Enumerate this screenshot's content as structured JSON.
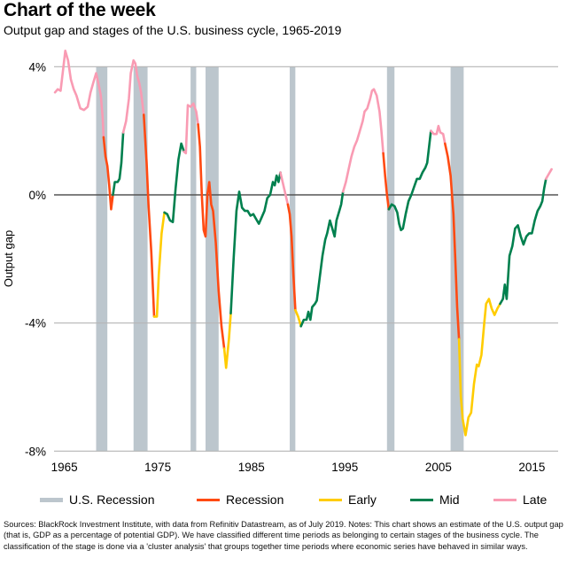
{
  "header": {
    "title": "Chart of the week",
    "subtitle": "Output gap and stages of the U.S. business cycle, 1965-2019"
  },
  "colors": {
    "recession_band": "#bcc6cd",
    "recession": "#ff4a12",
    "early": "#ffcc00",
    "mid": "#00804e",
    "late": "#f99bb3",
    "zero_line": "#555555",
    "grid": "#b5b5b5"
  },
  "legend": [
    {
      "key": "us_recession",
      "label": "U.S. Recession",
      "type": "band"
    },
    {
      "key": "recession",
      "label": "Recession",
      "type": "line"
    },
    {
      "key": "early",
      "label": "Early",
      "type": "line"
    },
    {
      "key": "mid",
      "label": "Mid",
      "type": "line"
    },
    {
      "key": "late",
      "label": "Late",
      "type": "line"
    }
  ],
  "footnote": "Sources: BlackRock Investment Institute, with data from Refinitiv Datastream, as of July 2019. Notes: This chart shows an estimate of the U.S. output gap (that is, GDP as a percentage of potential GDP). We have classified different time periods as belonging to certain stages of the business cycle. The classification of the stage is done via a 'cluster analysis' that groups together time periods where economic series have behaved in similar ways.",
  "chart_data": {
    "type": "line",
    "title": "Output gap and stages of the U.S. business cycle, 1965-2019",
    "xlabel": "",
    "ylabel": "Output gap",
    "xlim": [
      1963.9,
      2017.8
    ],
    "ylim": [
      -8,
      4.5
    ],
    "x_ticks": [
      1965,
      1975,
      1985,
      1995,
      2005,
      2015
    ],
    "x_tick_labels": [
      "1965",
      "1975",
      "1985",
      "1995",
      "2005",
      "2015"
    ],
    "y_ticks": [
      4,
      0,
      -4,
      -8
    ],
    "y_tick_labels": [
      "4%",
      "0%",
      "-4%",
      "-8%"
    ],
    "grid": "horizontal",
    "legend_position": "bottom",
    "recession_periods": [
      [
        1968.4,
        1969.6
      ],
      [
        1972.4,
        1973.9
      ],
      [
        1978.5,
        1979.1
      ],
      [
        1980.1,
        1981.5
      ],
      [
        1989.1,
        1989.7
      ],
      [
        1999.5,
        2000.3
      ],
      [
        2006.3,
        2007.7
      ]
    ],
    "series": [
      {
        "name": "Late",
        "stage": "late",
        "points": [
          [
            1964.0,
            3.2
          ],
          [
            1964.3,
            3.3
          ],
          [
            1964.6,
            3.25
          ],
          [
            1964.9,
            4.0
          ],
          [
            1965.1,
            4.5
          ],
          [
            1965.4,
            4.2
          ],
          [
            1965.7,
            3.6
          ],
          [
            1966.0,
            3.3
          ],
          [
            1966.3,
            3.1
          ],
          [
            1966.7,
            2.7
          ],
          [
            1967.1,
            2.65
          ],
          [
            1967.5,
            2.75
          ],
          [
            1967.8,
            3.2
          ],
          [
            1968.1,
            3.5
          ],
          [
            1968.4,
            3.8
          ],
          [
            1968.7,
            3.4
          ],
          [
            1968.9,
            3.1
          ],
          [
            1969.1,
            2.4
          ],
          [
            1969.2,
            1.8
          ]
        ]
      },
      {
        "name": "Recession",
        "stage": "recession",
        "points": [
          [
            1969.2,
            1.8
          ],
          [
            1969.4,
            1.2
          ],
          [
            1969.6,
            0.9
          ],
          [
            1969.8,
            0.3
          ],
          [
            1970.0,
            -0.45
          ],
          [
            1970.2,
            0.0
          ]
        ]
      },
      {
        "name": "Mid",
        "stage": "mid",
        "points": [
          [
            1970.2,
            0.0
          ],
          [
            1970.4,
            0.4
          ],
          [
            1970.7,
            0.4
          ],
          [
            1970.9,
            0.5
          ],
          [
            1971.1,
            1.0
          ],
          [
            1971.3,
            1.95
          ]
        ]
      },
      {
        "name": "Late",
        "stage": "late",
        "points": [
          [
            1971.3,
            1.95
          ],
          [
            1971.6,
            2.3
          ],
          [
            1971.9,
            3.0
          ],
          [
            1972.1,
            3.8
          ],
          [
            1972.4,
            4.2
          ],
          [
            1972.6,
            4.1
          ],
          [
            1972.8,
            3.7
          ],
          [
            1973.0,
            3.5
          ],
          [
            1973.2,
            3.2
          ],
          [
            1973.5,
            2.5
          ]
        ]
      },
      {
        "name": "Recession",
        "stage": "recession",
        "points": [
          [
            1973.5,
            2.5
          ],
          [
            1973.8,
            1.0
          ],
          [
            1974.0,
            -0.3
          ],
          [
            1974.3,
            -1.8
          ],
          [
            1974.6,
            -3.8
          ]
        ]
      },
      {
        "name": "Early",
        "stage": "early",
        "points": [
          [
            1974.6,
            -3.8
          ],
          [
            1974.9,
            -3.8
          ],
          [
            1975.1,
            -2.5
          ],
          [
            1975.4,
            -1.2
          ],
          [
            1975.7,
            -0.55
          ]
        ]
      },
      {
        "name": "Mid",
        "stage": "mid",
        "points": [
          [
            1975.7,
            -0.55
          ],
          [
            1976.0,
            -0.6
          ],
          [
            1976.3,
            -0.8
          ],
          [
            1976.6,
            -0.85
          ],
          [
            1976.9,
            0.2
          ],
          [
            1977.2,
            1.1
          ],
          [
            1977.5,
            1.6
          ],
          [
            1977.8,
            1.35
          ]
        ]
      },
      {
        "name": "Late",
        "stage": "late",
        "points": [
          [
            1977.8,
            1.35
          ],
          [
            1978.0,
            1.3
          ],
          [
            1978.2,
            2.8
          ],
          [
            1978.5,
            2.75
          ],
          [
            1978.8,
            2.85
          ],
          [
            1979.1,
            2.6
          ],
          [
            1979.3,
            2.2
          ]
        ]
      },
      {
        "name": "Recession",
        "stage": "recession",
        "points": [
          [
            1979.3,
            2.2
          ],
          [
            1979.5,
            1.5
          ],
          [
            1979.7,
            0.0
          ],
          [
            1979.9,
            -1.1
          ],
          [
            1980.1,
            -1.3
          ],
          [
            1980.3,
            0.0
          ],
          [
            1980.5,
            0.4
          ],
          [
            1980.7,
            -0.3
          ],
          [
            1980.9,
            -0.5
          ],
          [
            1981.2,
            -1.5
          ],
          [
            1981.5,
            -3.0
          ],
          [
            1981.8,
            -4.1
          ],
          [
            1982.1,
            -4.8
          ]
        ]
      },
      {
        "name": "Early",
        "stage": "early",
        "points": [
          [
            1982.1,
            -4.8
          ],
          [
            1982.3,
            -5.4
          ],
          [
            1982.6,
            -4.5
          ],
          [
            1982.8,
            -3.7
          ]
        ]
      },
      {
        "name": "Mid",
        "stage": "mid",
        "points": [
          [
            1982.8,
            -3.7
          ],
          [
            1983.1,
            -2.0
          ],
          [
            1983.4,
            -0.5
          ],
          [
            1983.7,
            0.1
          ],
          [
            1984.0,
            -0.4
          ],
          [
            1984.3,
            -0.5
          ],
          [
            1984.6,
            -0.5
          ],
          [
            1984.9,
            -0.65
          ],
          [
            1985.2,
            -0.6
          ],
          [
            1985.5,
            -0.75
          ],
          [
            1985.8,
            -0.9
          ],
          [
            1986.1,
            -0.7
          ],
          [
            1986.4,
            -0.5
          ],
          [
            1986.7,
            -0.1
          ],
          [
            1987.0,
            0.0
          ],
          [
            1987.3,
            0.4
          ],
          [
            1987.5,
            0.3
          ],
          [
            1987.7,
            0.6
          ],
          [
            1987.9,
            0.4
          ],
          [
            1988.1,
            0.7
          ]
        ]
      },
      {
        "name": "Late",
        "stage": "late",
        "points": [
          [
            1988.1,
            0.7
          ],
          [
            1988.3,
            0.45
          ],
          [
            1988.5,
            0.2
          ],
          [
            1988.7,
            -0.05
          ],
          [
            1988.9,
            -0.3
          ]
        ]
      },
      {
        "name": "Recession",
        "stage": "recession",
        "points": [
          [
            1988.9,
            -0.3
          ],
          [
            1989.1,
            -0.6
          ],
          [
            1989.3,
            -1.3
          ],
          [
            1989.5,
            -2.5
          ],
          [
            1989.7,
            -3.6
          ]
        ]
      },
      {
        "name": "Early",
        "stage": "early",
        "points": [
          [
            1989.7,
            -3.6
          ],
          [
            1990.0,
            -3.8
          ],
          [
            1990.3,
            -4.1
          ]
        ]
      },
      {
        "name": "Mid",
        "stage": "mid",
        "points": [
          [
            1990.3,
            -4.1
          ],
          [
            1990.6,
            -3.9
          ],
          [
            1990.9,
            -3.9
          ],
          [
            1991.1,
            -3.65
          ],
          [
            1991.3,
            -3.9
          ],
          [
            1991.5,
            -3.5
          ],
          [
            1991.8,
            -3.4
          ],
          [
            1992.0,
            -3.3
          ],
          [
            1992.3,
            -2.6
          ],
          [
            1992.6,
            -1.9
          ],
          [
            1992.9,
            -1.4
          ],
          [
            1993.1,
            -1.2
          ],
          [
            1993.4,
            -0.8
          ],
          [
            1993.7,
            -1.1
          ],
          [
            1993.9,
            -1.3
          ],
          [
            1994.1,
            -0.8
          ],
          [
            1994.4,
            -0.5
          ],
          [
            1994.6,
            -0.3
          ],
          [
            1994.8,
            0.1
          ]
        ]
      },
      {
        "name": "Late",
        "stage": "late",
        "points": [
          [
            1994.8,
            0.1
          ],
          [
            1995.1,
            0.4
          ],
          [
            1995.4,
            0.8
          ],
          [
            1995.7,
            1.2
          ],
          [
            1996.0,
            1.5
          ],
          [
            1996.3,
            1.7
          ],
          [
            1996.6,
            2.0
          ],
          [
            1996.9,
            2.3
          ],
          [
            1997.1,
            2.6
          ],
          [
            1997.4,
            2.7
          ],
          [
            1997.7,
            3.0
          ],
          [
            1997.9,
            3.25
          ],
          [
            1998.1,
            3.3
          ],
          [
            1998.4,
            3.1
          ],
          [
            1998.7,
            2.6
          ],
          [
            1998.9,
            2.0
          ],
          [
            1999.1,
            1.3
          ]
        ]
      },
      {
        "name": "Recession",
        "stage": "recession",
        "points": [
          [
            1999.1,
            1.3
          ],
          [
            1999.3,
            0.6
          ],
          [
            1999.5,
            0.0
          ],
          [
            1999.7,
            -0.45
          ]
        ]
      },
      {
        "name": "Early",
        "stage": "early",
        "points": []
      },
      {
        "name": "Mid",
        "stage": "mid",
        "points": [
          [
            1999.7,
            -0.45
          ],
          [
            2000.0,
            -0.3
          ],
          [
            2000.3,
            -0.35
          ],
          [
            2000.6,
            -0.55
          ],
          [
            2000.8,
            -0.9
          ],
          [
            2001.0,
            -1.1
          ],
          [
            2001.2,
            -1.05
          ],
          [
            2001.5,
            -0.6
          ],
          [
            2001.8,
            -0.2
          ],
          [
            2002.1,
            0.0
          ],
          [
            2002.4,
            0.25
          ],
          [
            2002.7,
            0.5
          ],
          [
            2003.0,
            0.5
          ],
          [
            2003.3,
            0.7
          ],
          [
            2003.6,
            0.85
          ],
          [
            2003.8,
            1.0
          ],
          [
            2004.0,
            1.5
          ],
          [
            2004.2,
            2.0
          ]
        ]
      },
      {
        "name": "Late",
        "stage": "late",
        "points": [
          [
            2004.2,
            2.0
          ],
          [
            2004.5,
            1.9
          ],
          [
            2004.8,
            1.9
          ],
          [
            2005.0,
            2.15
          ],
          [
            2005.2,
            1.95
          ],
          [
            2005.5,
            1.9
          ],
          [
            2005.7,
            1.6
          ]
        ]
      },
      {
        "name": "Recession",
        "stage": "recession",
        "points": [
          [
            2005.7,
            1.6
          ],
          [
            2006.0,
            1.2
          ],
          [
            2006.3,
            0.6
          ],
          [
            2006.6,
            -0.6
          ],
          [
            2006.8,
            -2.0
          ],
          [
            2007.0,
            -3.5
          ],
          [
            2007.2,
            -4.5
          ]
        ]
      },
      {
        "name": "Early",
        "stage": "early",
        "points": [
          [
            2007.2,
            -4.5
          ],
          [
            2007.4,
            -6.3
          ],
          [
            2007.6,
            -7.0
          ],
          [
            2007.9,
            -7.5
          ],
          [
            2008.2,
            -6.95
          ],
          [
            2008.5,
            -6.8
          ],
          [
            2008.8,
            -5.9
          ],
          [
            2009.1,
            -5.3
          ],
          [
            2009.3,
            -5.35
          ],
          [
            2009.6,
            -5.0
          ],
          [
            2009.9,
            -4.0
          ],
          [
            2010.1,
            -3.4
          ],
          [
            2010.4,
            -3.25
          ],
          [
            2010.7,
            -3.55
          ],
          [
            2011.0,
            -3.75
          ],
          [
            2011.3,
            -3.55
          ],
          [
            2011.6,
            -3.4
          ]
        ]
      },
      {
        "name": "Mid",
        "stage": "mid",
        "points": [
          [
            2011.6,
            -3.4
          ],
          [
            2011.9,
            -3.25
          ],
          [
            2012.1,
            -2.8
          ],
          [
            2012.3,
            -3.25
          ],
          [
            2012.6,
            -1.9
          ],
          [
            2012.9,
            -1.6
          ],
          [
            2013.2,
            -1.05
          ],
          [
            2013.5,
            -0.95
          ],
          [
            2013.8,
            -1.3
          ],
          [
            2014.1,
            -1.55
          ],
          [
            2014.4,
            -1.3
          ],
          [
            2014.7,
            -1.2
          ],
          [
            2015.0,
            -1.2
          ],
          [
            2015.3,
            -0.8
          ],
          [
            2015.6,
            -0.5
          ],
          [
            2015.9,
            -0.35
          ],
          [
            2016.1,
            -0.2
          ],
          [
            2016.3,
            0.2
          ],
          [
            2016.5,
            0.5
          ]
        ]
      },
      {
        "name": "Late",
        "stage": "late",
        "points": [
          [
            2016.5,
            0.5
          ],
          [
            2016.8,
            0.65
          ],
          [
            2017.1,
            0.8
          ]
        ]
      }
    ]
  }
}
